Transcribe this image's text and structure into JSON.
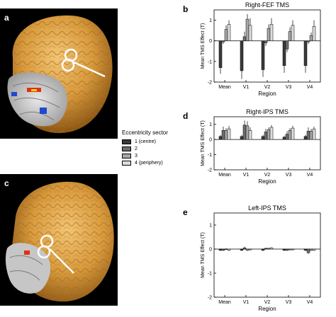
{
  "panels": {
    "a": "a",
    "b": "b",
    "c": "c",
    "d": "d",
    "e": "e"
  },
  "legend": {
    "title": "Eccentricity sector",
    "items": [
      {
        "label": "1 (centre)",
        "color": "#3a3a3a"
      },
      {
        "label": "2",
        "color": "#6e6e6e"
      },
      {
        "label": "3",
        "color": "#a8a8a8"
      },
      {
        "label": "4 (periphery)",
        "color": "#dcdcdc"
      }
    ]
  },
  "chart_data": [
    {
      "type": "bar",
      "title": "Right-FEF TMS",
      "xlabel": "Region",
      "ylabel": "Mean TMS Effect (T)",
      "categories": [
        "Mean",
        "V1",
        "V2",
        "V3",
        "V4"
      ],
      "ylim": [
        -2,
        1.5
      ],
      "yticks": [
        -2,
        -1,
        0,
        1
      ],
      "series": [
        {
          "name": "1 (centre)",
          "values": [
            -1.3,
            -1.45,
            -1.4,
            -1.2,
            -1.2
          ],
          "errors": [
            0.3,
            0.4,
            0.35,
            0.35,
            0.35
          ]
        },
        {
          "name": "2",
          "values": [
            -0.05,
            0.2,
            -0.1,
            -0.4,
            -0.05
          ],
          "errors": [
            0.1,
            0.25,
            0.15,
            0.15,
            0.1
          ]
        },
        {
          "name": "3",
          "values": [
            0.55,
            1.05,
            0.6,
            0.45,
            0.25
          ],
          "errors": [
            0.2,
            0.25,
            0.2,
            0.2,
            0.15
          ]
        },
        {
          "name": "4 (periphery)",
          "values": [
            0.8,
            0.75,
            0.8,
            0.75,
            0.7
          ],
          "errors": [
            0.2,
            0.35,
            0.3,
            0.25,
            0.3
          ]
        }
      ]
    },
    {
      "type": "bar",
      "title": "Right-IPS TMS",
      "xlabel": "Region",
      "ylabel": "Mean TMS Effect (T)",
      "categories": [
        "Mean",
        "V1",
        "V2",
        "V3",
        "V4"
      ],
      "ylim": [
        -2,
        1.5
      ],
      "yticks": [
        -2,
        -1,
        0,
        1
      ],
      "series": [
        {
          "name": "1 (centre)",
          "values": [
            0.2,
            0.2,
            0.2,
            0.15,
            0.2
          ],
          "errors": [
            0.1,
            0.1,
            0.1,
            0.1,
            0.1
          ]
        },
        {
          "name": "2",
          "values": [
            0.6,
            0.95,
            0.5,
            0.35,
            0.55
          ],
          "errors": [
            0.25,
            0.3,
            0.2,
            0.2,
            0.25
          ]
        },
        {
          "name": "3",
          "values": [
            0.6,
            0.9,
            0.65,
            0.6,
            0.55
          ],
          "errors": [
            0.15,
            0.3,
            0.15,
            0.15,
            0.15
          ]
        },
        {
          "name": "4 (periphery)",
          "values": [
            0.7,
            0.6,
            0.8,
            0.75,
            0.7
          ],
          "errors": [
            0.2,
            0.2,
            0.15,
            0.15,
            0.15
          ]
        }
      ]
    },
    {
      "type": "bar",
      "title": "Left-IPS TMS",
      "xlabel": "Region",
      "ylabel": "Mean TMS Effect (T)",
      "categories": [
        "Mean",
        "V1",
        "V2",
        "V3",
        "V4"
      ],
      "ylim": [
        -2,
        1.5
      ],
      "yticks": [
        -2,
        -1,
        0,
        1
      ],
      "series": [
        {
          "name": "1 (centre)",
          "values": [
            -0.05,
            -0.05,
            -0.05,
            -0.05,
            -0.05
          ],
          "errors": [
            0.03,
            0.03,
            0.03,
            0.03,
            0.03
          ]
        },
        {
          "name": "2",
          "values": [
            -0.05,
            0.05,
            0.03,
            -0.05,
            -0.15
          ],
          "errors": [
            0.03,
            0.05,
            0.03,
            0.03,
            0.05
          ]
        },
        {
          "name": "3",
          "values": [
            0.0,
            -0.05,
            0.03,
            -0.03,
            -0.05
          ],
          "errors": [
            0.03,
            0.03,
            0.03,
            0.03,
            0.03
          ]
        },
        {
          "name": "4 (periphery)",
          "values": [
            -0.05,
            -0.03,
            0.05,
            -0.03,
            -0.05
          ],
          "errors": [
            0.03,
            0.03,
            0.03,
            0.03,
            0.03
          ]
        }
      ]
    }
  ]
}
